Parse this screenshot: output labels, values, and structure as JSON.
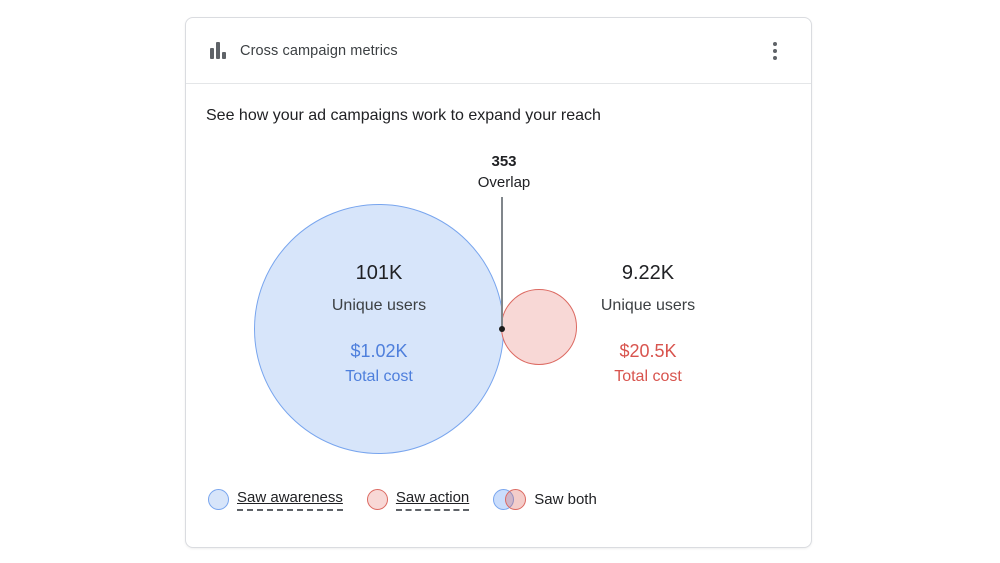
{
  "card": {
    "header": {
      "icon": "bar-chart-icon",
      "title": "Cross campaign metrics",
      "menu_icon": "kebab-menu-icon"
    },
    "subtitle": "See how your ad campaigns work to expand your reach"
  },
  "chart_data": {
    "type": "venn",
    "title": "Cross campaign metrics",
    "annotation": {
      "value": "353",
      "label": "Overlap"
    },
    "overlap_value": 353,
    "sets": [
      {
        "name": "Saw awareness",
        "unique_users": "101K",
        "unique_users_label": "Unique users",
        "total_cost": "$1.02K",
        "total_cost_label": "Total cost",
        "fill_color": "#d7e5fa",
        "stroke_color": "#78a5ee",
        "value_color": "#4e7fdc"
      },
      {
        "name": "Saw action",
        "unique_users": "9.22K",
        "unique_users_label": "Unique users",
        "total_cost": "$20.5K",
        "total_cost_label": "Total cost",
        "fill_color": "#f8d8d6",
        "stroke_color": "#dc6961",
        "value_color": "#d8544e"
      }
    ],
    "legend": [
      {
        "label": "Saw awareness",
        "swatch": "blue-circle"
      },
      {
        "label": "Saw action",
        "swatch": "red-circle"
      },
      {
        "label": "Saw both",
        "swatch": "overlap-circles"
      }
    ]
  }
}
